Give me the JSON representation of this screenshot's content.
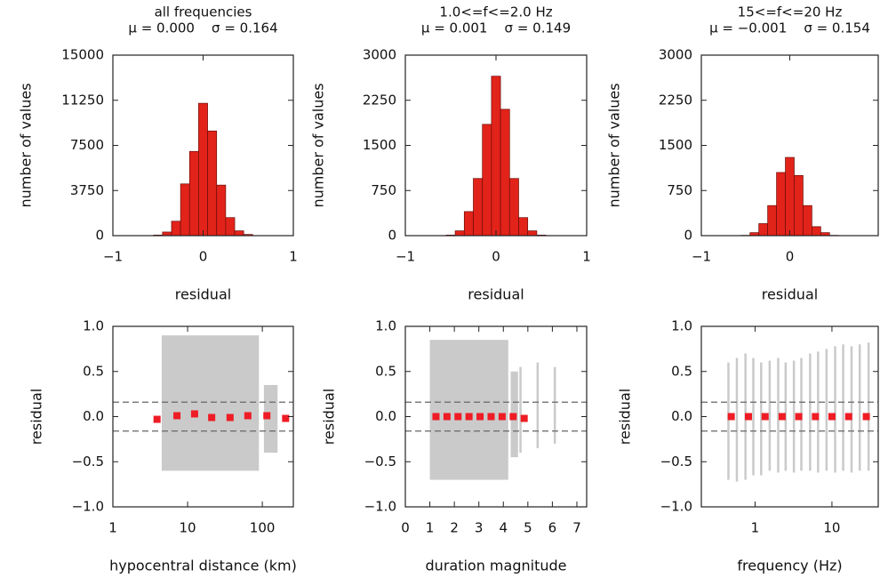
{
  "chart_data": [
    {
      "type": "histogram",
      "title": "all frequencies",
      "subtitle": "μ = 0.000    σ = 0.164",
      "xlabel": "residual",
      "ylabel": "number of values",
      "bins": [
        -0.55,
        -0.45,
        -0.35,
        -0.25,
        -0.15,
        -0.05,
        0.05,
        0.15,
        0.25,
        0.35,
        0.45,
        0.55
      ],
      "values": [
        50,
        300,
        1200,
        4300,
        7000,
        11000,
        8700,
        4200,
        1500,
        400,
        100
      ],
      "color": "#e2231a",
      "xlim": [
        -1,
        1
      ],
      "xticks": [
        {
          "value": -1,
          "label": "−1"
        },
        0,
        1
      ],
      "ylim": [
        0,
        15000
      ],
      "yticks": [
        0,
        3750,
        7500,
        11250,
        15000
      ]
    },
    {
      "type": "histogram",
      "title": "1.0<=f<=2.0 Hz",
      "subtitle": "μ = 0.001    σ = 0.149",
      "xlabel": "residual",
      "ylabel": "number of values",
      "bins": [
        -0.55,
        -0.45,
        -0.35,
        -0.25,
        -0.15,
        -0.05,
        0.05,
        0.15,
        0.25,
        0.35,
        0.45,
        0.55
      ],
      "values": [
        10,
        80,
        400,
        950,
        1850,
        2650,
        2100,
        950,
        300,
        80,
        10
      ],
      "color": "#e2231a",
      "xlim": [
        -1,
        1
      ],
      "xticks": [
        {
          "value": -1,
          "label": "−1"
        },
        0,
        1
      ],
      "ylim": [
        0,
        3000
      ],
      "yticks": [
        0,
        750,
        1500,
        2250,
        3000
      ]
    },
    {
      "type": "histogram",
      "title": "15<=f<=20 Hz",
      "subtitle": "μ = −0.001    σ = 0.154",
      "xlabel": "residual",
      "ylabel": "number of values",
      "bins": [
        -0.55,
        -0.45,
        -0.35,
        -0.25,
        -0.15,
        -0.05,
        0.05,
        0.15,
        0.25,
        0.35,
        0.45,
        0.55
      ],
      "values": [
        5,
        50,
        200,
        500,
        1050,
        1300,
        1000,
        500,
        150,
        50,
        5
      ],
      "color": "#e2231a",
      "xlim": [
        -1,
        1
      ],
      "xticks": [
        {
          "value": -1,
          "label": "−1"
        },
        0
      ],
      "ylim": [
        0,
        3000
      ],
      "yticks": [
        0,
        750,
        1500,
        2250,
        3000
      ]
    },
    {
      "type": "scatter",
      "xlabel": "hypocentral distance (km)",
      "ylabel": "residual",
      "log_x": true,
      "x": [
        3.9,
        7.2,
        12.4,
        21,
        37,
        64,
        115,
        205
      ],
      "y": [
        -0.03,
        0.01,
        0.03,
        -0.01,
        -0.01,
        0.01,
        0.01,
        -0.02
      ],
      "color": "#ee1c25",
      "cloud_color": "#c4c4c4",
      "cloud": [
        {
          "x": [
            4.5,
            90
          ],
          "y": [
            -0.6,
            0.9
          ]
        },
        {
          "x": [
            105,
            160
          ],
          "y": [
            -0.4,
            0.35
          ]
        }
      ],
      "hlines": [
        0.16,
        -0.16
      ],
      "xlim": [
        1,
        260
      ],
      "xticks": [
        1,
        10,
        100
      ],
      "ylim": [
        -1,
        1
      ],
      "yticks": [
        {
          "value": -1,
          "label": "−1.0"
        },
        {
          "value": -0.5,
          "label": "−0.5"
        },
        {
          "value": 0,
          "label": "0.0"
        },
        0.5,
        {
          "value": 1,
          "label": "1.0"
        }
      ]
    },
    {
      "type": "scatter",
      "xlabel": "duration magnitude",
      "ylabel": "residual",
      "log_x": false,
      "x": [
        1.25,
        1.7,
        2.15,
        2.6,
        3.05,
        3.5,
        3.95,
        4.4,
        4.85
      ],
      "y": [
        0,
        0,
        0,
        0,
        0,
        0,
        0,
        0,
        -0.02
      ],
      "color": "#ee1c25",
      "cloud_color": "#c4c4c4",
      "cloud": [
        {
          "x": [
            1.0,
            4.2
          ],
          "y": [
            -0.7,
            0.85
          ]
        },
        {
          "x": [
            4.3,
            4.6
          ],
          "y": [
            -0.45,
            0.5
          ]
        },
        {
          "x": [
            4.7,
            4.7
          ],
          "y": [
            -0.4,
            0.55
          ]
        },
        {
          "x": [
            5.4,
            5.4
          ],
          "y": [
            -0.35,
            0.6
          ]
        },
        {
          "x": [
            6.1,
            6.1
          ],
          "y": [
            -0.3,
            0.55
          ]
        }
      ],
      "hlines": [
        0.16,
        -0.16
      ],
      "xlim": [
        0,
        7.4
      ],
      "xticks": [
        0,
        1,
        2,
        3,
        4,
        5,
        6,
        7
      ],
      "ylim": [
        -1,
        1
      ],
      "yticks": [
        {
          "value": -1,
          "label": "−1.0"
        },
        {
          "value": -0.5,
          "label": "−0.5"
        },
        {
          "value": 0,
          "label": "0.0"
        },
        0.5,
        {
          "value": 1,
          "label": "1.0"
        }
      ]
    },
    {
      "type": "scatter",
      "xlabel": "frequency (Hz)",
      "ylabel": "residual",
      "log_x": true,
      "x": [
        0.49,
        0.82,
        1.35,
        2.25,
        3.7,
        6.1,
        10,
        16.5,
        28
      ],
      "y": [
        0,
        0,
        0,
        0,
        0,
        0,
        0,
        0,
        0
      ],
      "color": "#ee1c25",
      "cloud_color": "#c4c4c4",
      "cloud": [
        {
          "x": [
            0.45,
            0.45
          ],
          "y": [
            -0.7,
            0.6
          ]
        },
        {
          "x": [
            0.58,
            0.58
          ],
          "y": [
            -0.72,
            0.65
          ]
        },
        {
          "x": [
            0.75,
            0.75
          ],
          "y": [
            -0.7,
            0.7
          ]
        },
        {
          "x": [
            0.95,
            0.95
          ],
          "y": [
            -0.65,
            0.65
          ]
        },
        {
          "x": [
            1.2,
            1.2
          ],
          "y": [
            -0.65,
            0.6
          ]
        },
        {
          "x": [
            1.55,
            1.55
          ],
          "y": [
            -0.6,
            0.62
          ]
        },
        {
          "x": [
            2,
            2
          ],
          "y": [
            -0.62,
            0.65
          ]
        },
        {
          "x": [
            2.5,
            2.5
          ],
          "y": [
            -0.6,
            0.6
          ]
        },
        {
          "x": [
            3.2,
            3.2
          ],
          "y": [
            -0.62,
            0.62
          ]
        },
        {
          "x": [
            4,
            4
          ],
          "y": [
            -0.6,
            0.65
          ]
        },
        {
          "x": [
            5.2,
            5.2
          ],
          "y": [
            -0.6,
            0.7
          ]
        },
        {
          "x": [
            6.6,
            6.6
          ],
          "y": [
            -0.62,
            0.72
          ]
        },
        {
          "x": [
            8.5,
            8.5
          ],
          "y": [
            -0.6,
            0.75
          ]
        },
        {
          "x": [
            11,
            11
          ],
          "y": [
            -0.62,
            0.78
          ]
        },
        {
          "x": [
            14,
            14
          ],
          "y": [
            -0.6,
            0.8
          ]
        },
        {
          "x": [
            18,
            18
          ],
          "y": [
            -0.62,
            0.78
          ]
        },
        {
          "x": [
            23,
            23
          ],
          "y": [
            -0.6,
            0.8
          ]
        },
        {
          "x": [
            30,
            30
          ],
          "y": [
            -0.6,
            0.82
          ]
        }
      ],
      "hlines": [
        0.16,
        -0.16
      ],
      "xlim": [
        0.2,
        40
      ],
      "xticks": [
        1,
        10
      ],
      "ylim": [
        -1,
        1
      ],
      "yticks": [
        {
          "value": -1,
          "label": "−1.0"
        },
        {
          "value": -0.5,
          "label": "−0.5"
        },
        {
          "value": 0,
          "label": "0.0"
        },
        0.5,
        {
          "value": 1,
          "label": "1.0"
        }
      ]
    }
  ]
}
